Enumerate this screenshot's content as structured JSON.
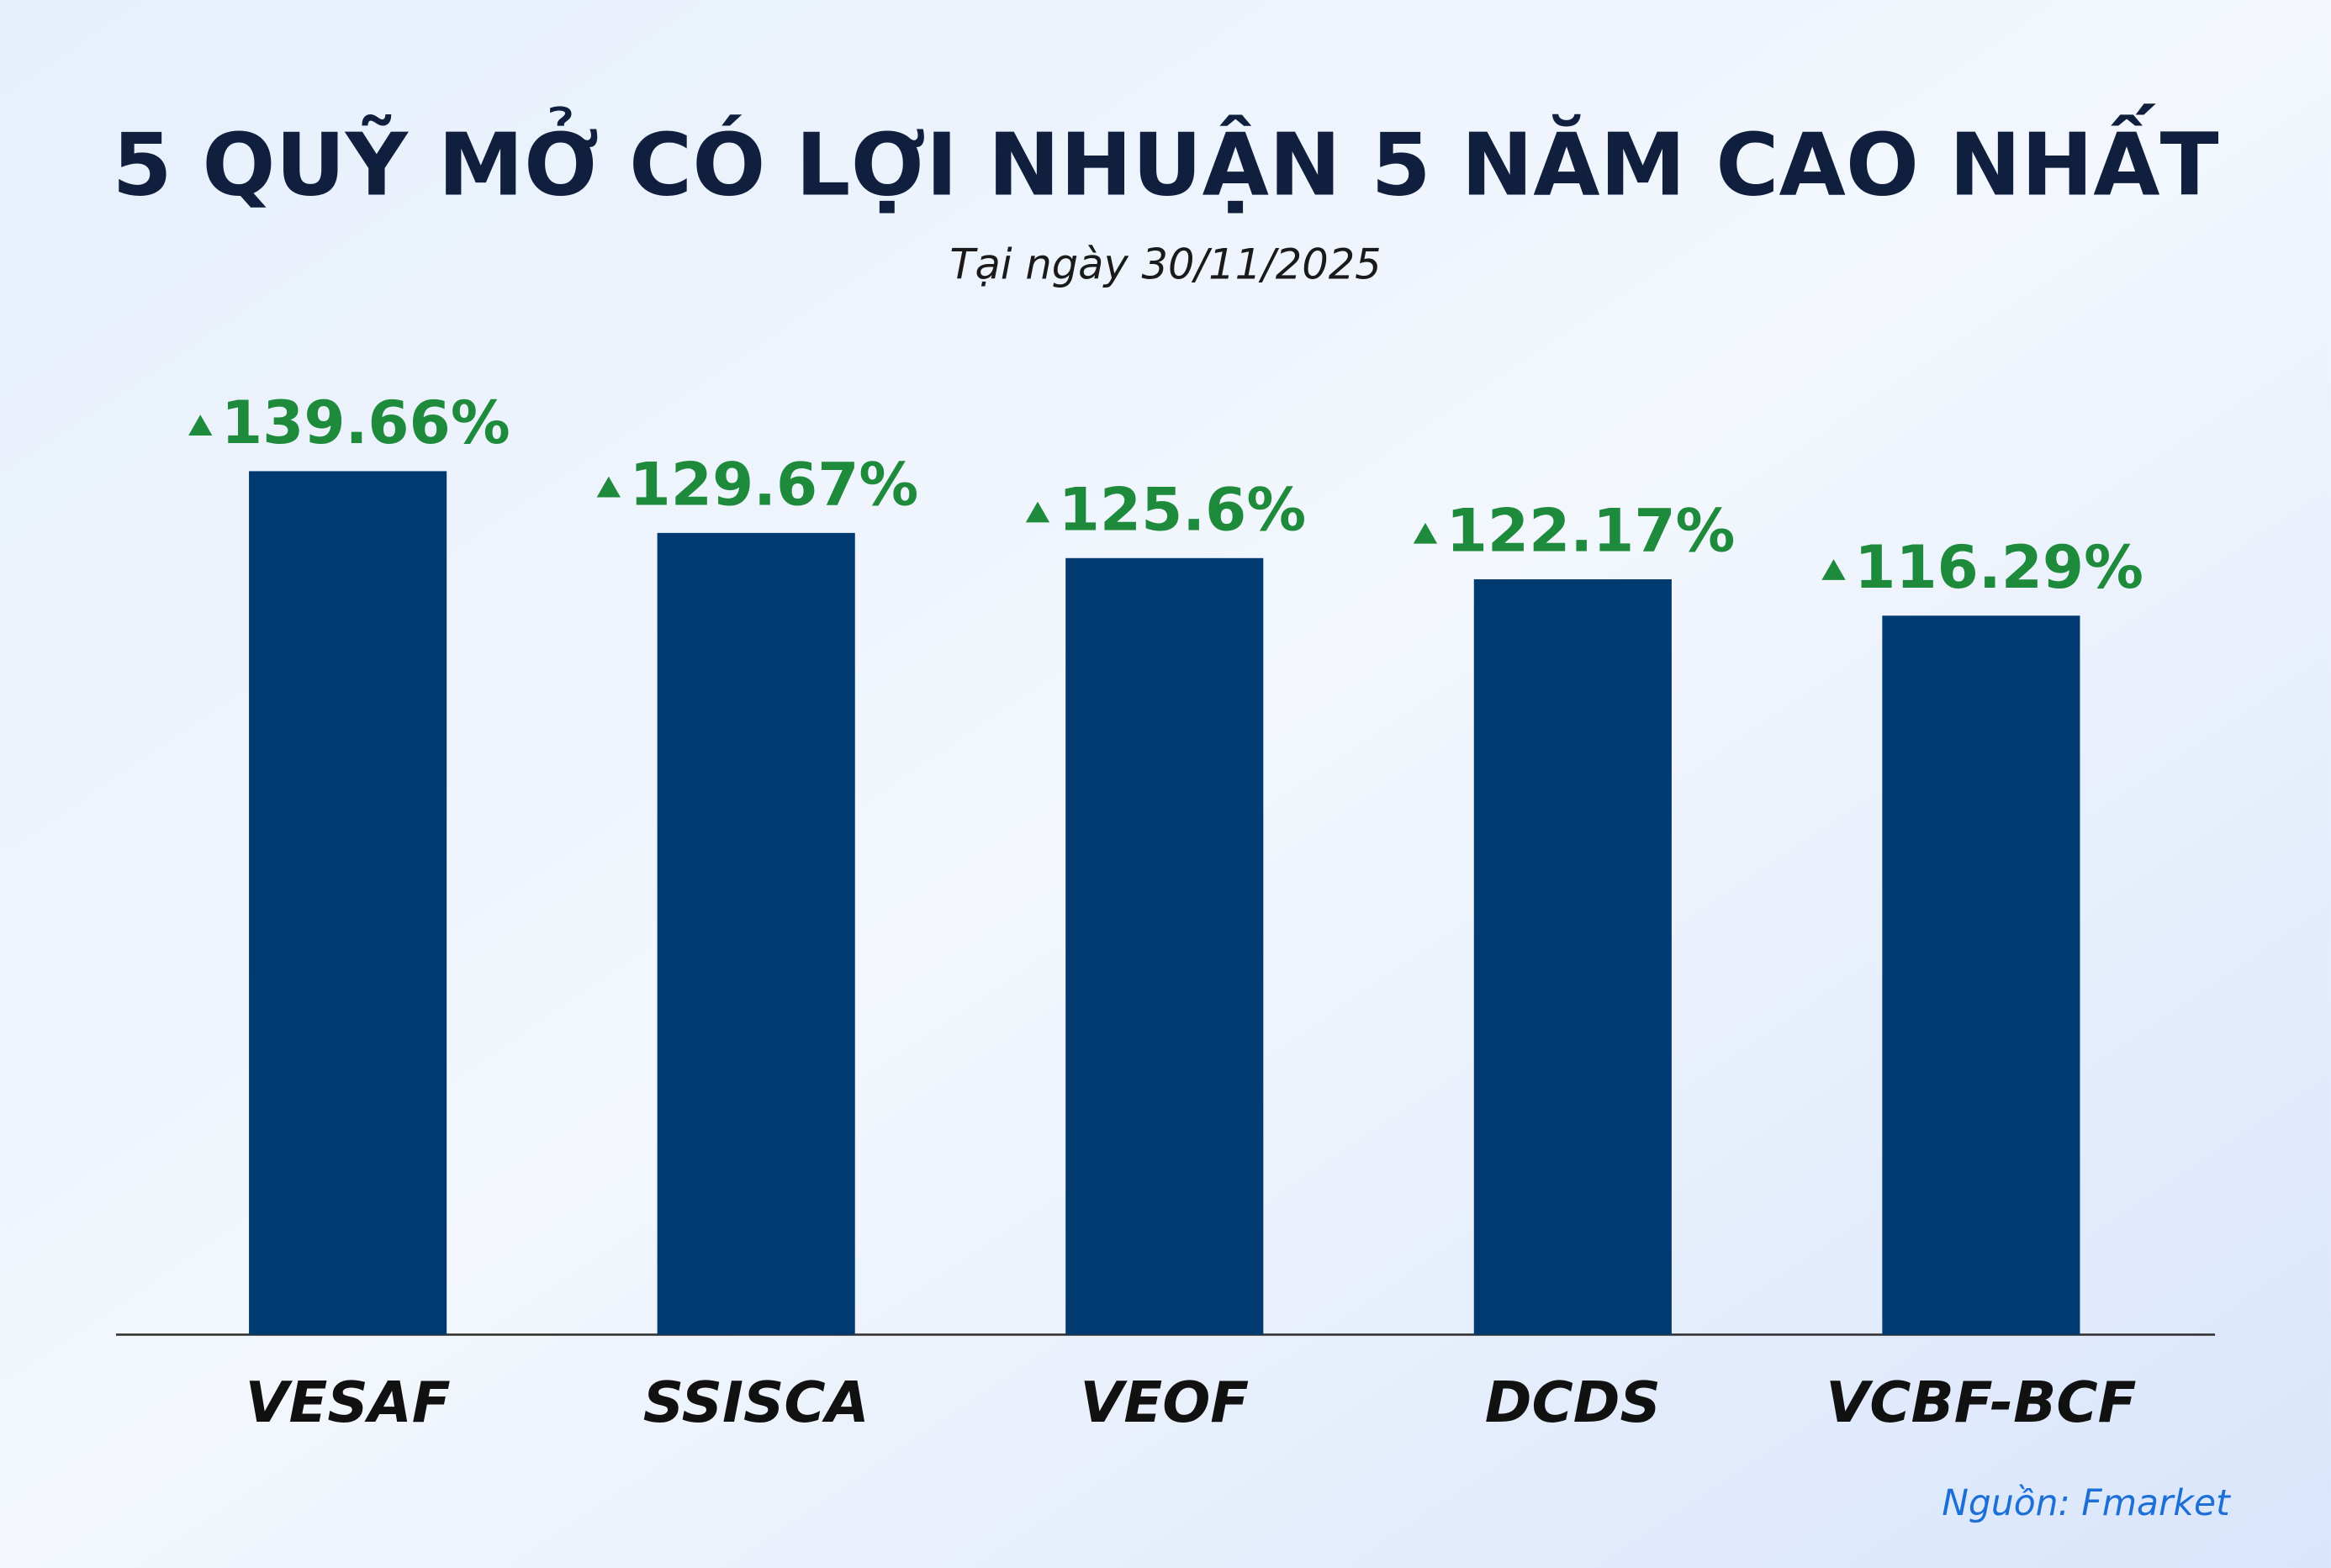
{
  "chart_data": {
    "type": "bar",
    "title": "5 QUỸ MỞ CÓ LỢI NHUẬN 5 NĂM CAO NHẤT",
    "subtitle": "Tại ngày 30/11/2025",
    "categories": [
      "VESAF",
      "SSISCA",
      "VEOF",
      "DCDS",
      "VCBF-BCF"
    ],
    "values": [
      139.66,
      129.67,
      125.6,
      122.17,
      116.29
    ],
    "value_labels": [
      "139.66%",
      "129.67%",
      "125.6%",
      "122.17%",
      "116.29%"
    ],
    "color": "#003a70",
    "label_color": "#1e8a3c",
    "ylim": [
      0,
      150
    ],
    "source": "Nguồn: Fmarket"
  }
}
